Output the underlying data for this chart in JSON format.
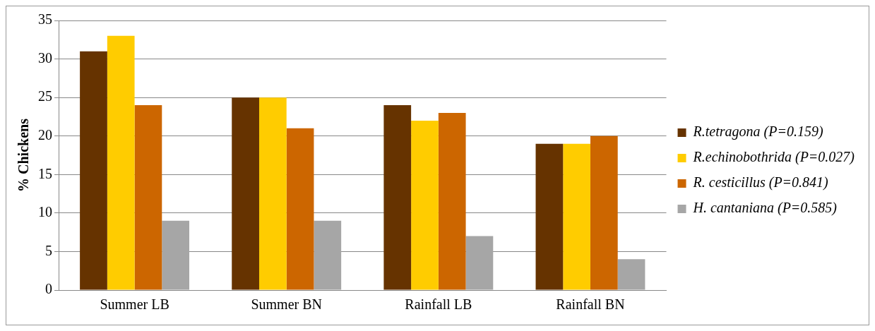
{
  "chart_data": {
    "type": "bar",
    "ylabel": "% Chickens",
    "categories": [
      "Summer LB",
      "Summer BN",
      "Rainfall LB",
      "Rainfall BN"
    ],
    "series": [
      {
        "name": "R.tetragona (P=0.159)",
        "color": "#663300",
        "values": [
          31,
          25,
          24,
          19
        ]
      },
      {
        "name": "R.echinobothrida (P=0.027)",
        "color": "#ffcc00",
        "values": [
          33,
          25,
          22,
          19
        ]
      },
      {
        "name": "R. cesticillus (P=0.841)",
        "color": "#cc6600",
        "values": [
          24,
          21,
          23,
          20
        ]
      },
      {
        "name": "H. cantaniana (P=0.585)",
        "color": "#a6a6a6",
        "values": [
          9,
          9,
          7,
          4
        ]
      }
    ],
    "ylim": [
      0,
      35
    ],
    "yticks": [
      0,
      5,
      10,
      15,
      20,
      25,
      30,
      35
    ],
    "grid": "y",
    "legend": "right"
  }
}
